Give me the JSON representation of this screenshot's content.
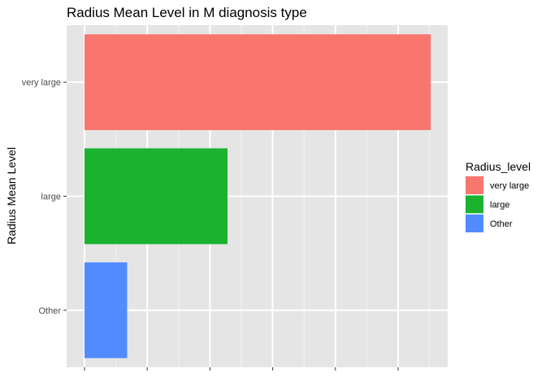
{
  "chart_data": {
    "type": "bar",
    "orientation": "horizontal",
    "title": "Radius Mean Level in M diagnosis type",
    "xlabel": "",
    "ylabel": "Radius Mean Level",
    "categories": [
      "very large",
      "large",
      "Other"
    ],
    "values": [
      138,
      57,
      17
    ],
    "xlim": [
      0,
      145
    ],
    "x_gridlines": [
      0,
      25,
      50,
      75,
      100,
      125,
      150
    ],
    "x_minor_gridlines": [
      12.5,
      37.5,
      62.5,
      87.5,
      112.5,
      137.5
    ],
    "x_tick_labels_visible": false,
    "grid": true,
    "legend": {
      "title": "Radius_level",
      "position": "right",
      "entries": [
        "very large",
        "large",
        "Other"
      ]
    },
    "colors": {
      "very large": "#F8766D",
      "large": "#1AB22F",
      "Other": "#528BFF",
      "panel_background": "#E5E5E5",
      "grid_major": "#FFFFFF",
      "grid_minor": "#F2F2F2",
      "text": "#000000",
      "tick_text": "#4D4D4D"
    }
  }
}
